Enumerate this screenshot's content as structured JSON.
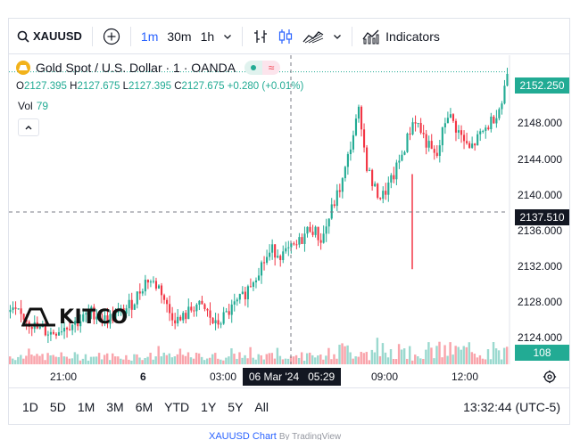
{
  "toolbar": {
    "symbol": "XAUUSD",
    "timeframes": [
      "1m",
      "30m",
      "1h"
    ],
    "active_timeframe": "1m",
    "indicators_label": "Indicators"
  },
  "legend": {
    "title": "Gold Spot / U.S. Dollar · 1 · OANDA",
    "approx_symbol": "≈"
  },
  "ohlc": {
    "o_label": "O",
    "o": "2127.395",
    "h_label": "H",
    "h": "2127.675",
    "l_label": "L",
    "l": "2127.395",
    "c_label": "C",
    "c": "2127.675",
    "change": "+0.280 (+0.01%)"
  },
  "volume": {
    "label": "Vol",
    "value": "79",
    "axis_label": "108"
  },
  "watermark": "KITCO",
  "price_axis": {
    "ticks": [
      "2148.000",
      "2144.000",
      "2140.000",
      "2136.000",
      "2132.000",
      "2128.000",
      "2124.000"
    ],
    "last_price": "2152.250",
    "crosshair_price": "2137.510"
  },
  "time_axis": {
    "labels": [
      "21:00",
      "6",
      "03:00",
      "09:00",
      "12:00"
    ],
    "crosshair_time": "06 Mar '24   05:29"
  },
  "ranges": [
    "1D",
    "5D",
    "1M",
    "3M",
    "6M",
    "YTD",
    "1Y",
    "5Y",
    "All"
  ],
  "clock": "13:32:44 (UTC-5)",
  "footer": {
    "link": "XAUUSD Chart",
    "by": "By TradingView"
  },
  "colors": {
    "up": "#22ab94",
    "down": "#f23645",
    "accent": "#2962ff",
    "gold": "#f2b21b"
  },
  "chart_data": {
    "type": "candlestick",
    "title": "Gold Spot / U.S. Dollar · 1 · OANDA",
    "ylim": [
      2121.5,
      2154.0
    ],
    "price_ticks": [
      2148,
      2144,
      2140,
      2136,
      2132,
      2128,
      2124
    ],
    "last_price": 2152.25,
    "crosshair_price": 2137.51,
    "x_labels": [
      "21:00",
      "6",
      "03:00",
      "09:00",
      "12:00"
    ],
    "close_path": [
      [
        0,
        2127.0
      ],
      [
        0.05,
        2126.5
      ],
      [
        0.1,
        2125.2
      ],
      [
        0.15,
        2124.8
      ],
      [
        0.2,
        2125.5
      ],
      [
        0.25,
        2126.0
      ],
      [
        0.3,
        2127.0
      ],
      [
        0.35,
        2126.2
      ],
      [
        0.4,
        2126.8
      ],
      [
        0.45,
        2128.0
      ],
      [
        0.5,
        2130.5
      ],
      [
        0.55,
        2129.5
      ],
      [
        0.58,
        2127.0
      ],
      [
        0.62,
        2126.0
      ],
      [
        0.68,
        2127.8
      ],
      [
        0.72,
        2127.0
      ],
      [
        0.75,
        2125.5
      ],
      [
        0.8,
        2127.0
      ],
      [
        0.85,
        2128.5
      ],
      [
        0.88,
        2130.0
      ],
      [
        0.92,
        2132.0
      ],
      [
        0.96,
        2133.5
      ],
      [
        1.0,
        2133.0
      ],
      [
        1.05,
        2134.0
      ],
      [
        1.1,
        2136.0
      ],
      [
        1.14,
        2134.5
      ],
      [
        1.18,
        2138.0
      ],
      [
        1.22,
        2141.0
      ],
      [
        1.25,
        2145.0
      ],
      [
        1.28,
        2148.5
      ],
      [
        1.3,
        2143.0
      ],
      [
        1.33,
        2140.0
      ],
      [
        1.36,
        2139.0
      ],
      [
        1.4,
        2141.0
      ],
      [
        1.44,
        2144.0
      ],
      [
        1.48,
        2147.5
      ],
      [
        1.52,
        2145.0
      ],
      [
        1.56,
        2143.0
      ],
      [
        1.6,
        2148.0
      ],
      [
        1.64,
        2146.0
      ],
      [
        1.68,
        2144.0
      ],
      [
        1.72,
        2145.5
      ],
      [
        1.76,
        2147.0
      ],
      [
        1.8,
        2149.0
      ],
      [
        1.82,
        2152.25
      ]
    ],
    "volume_axis_label": 108
  }
}
